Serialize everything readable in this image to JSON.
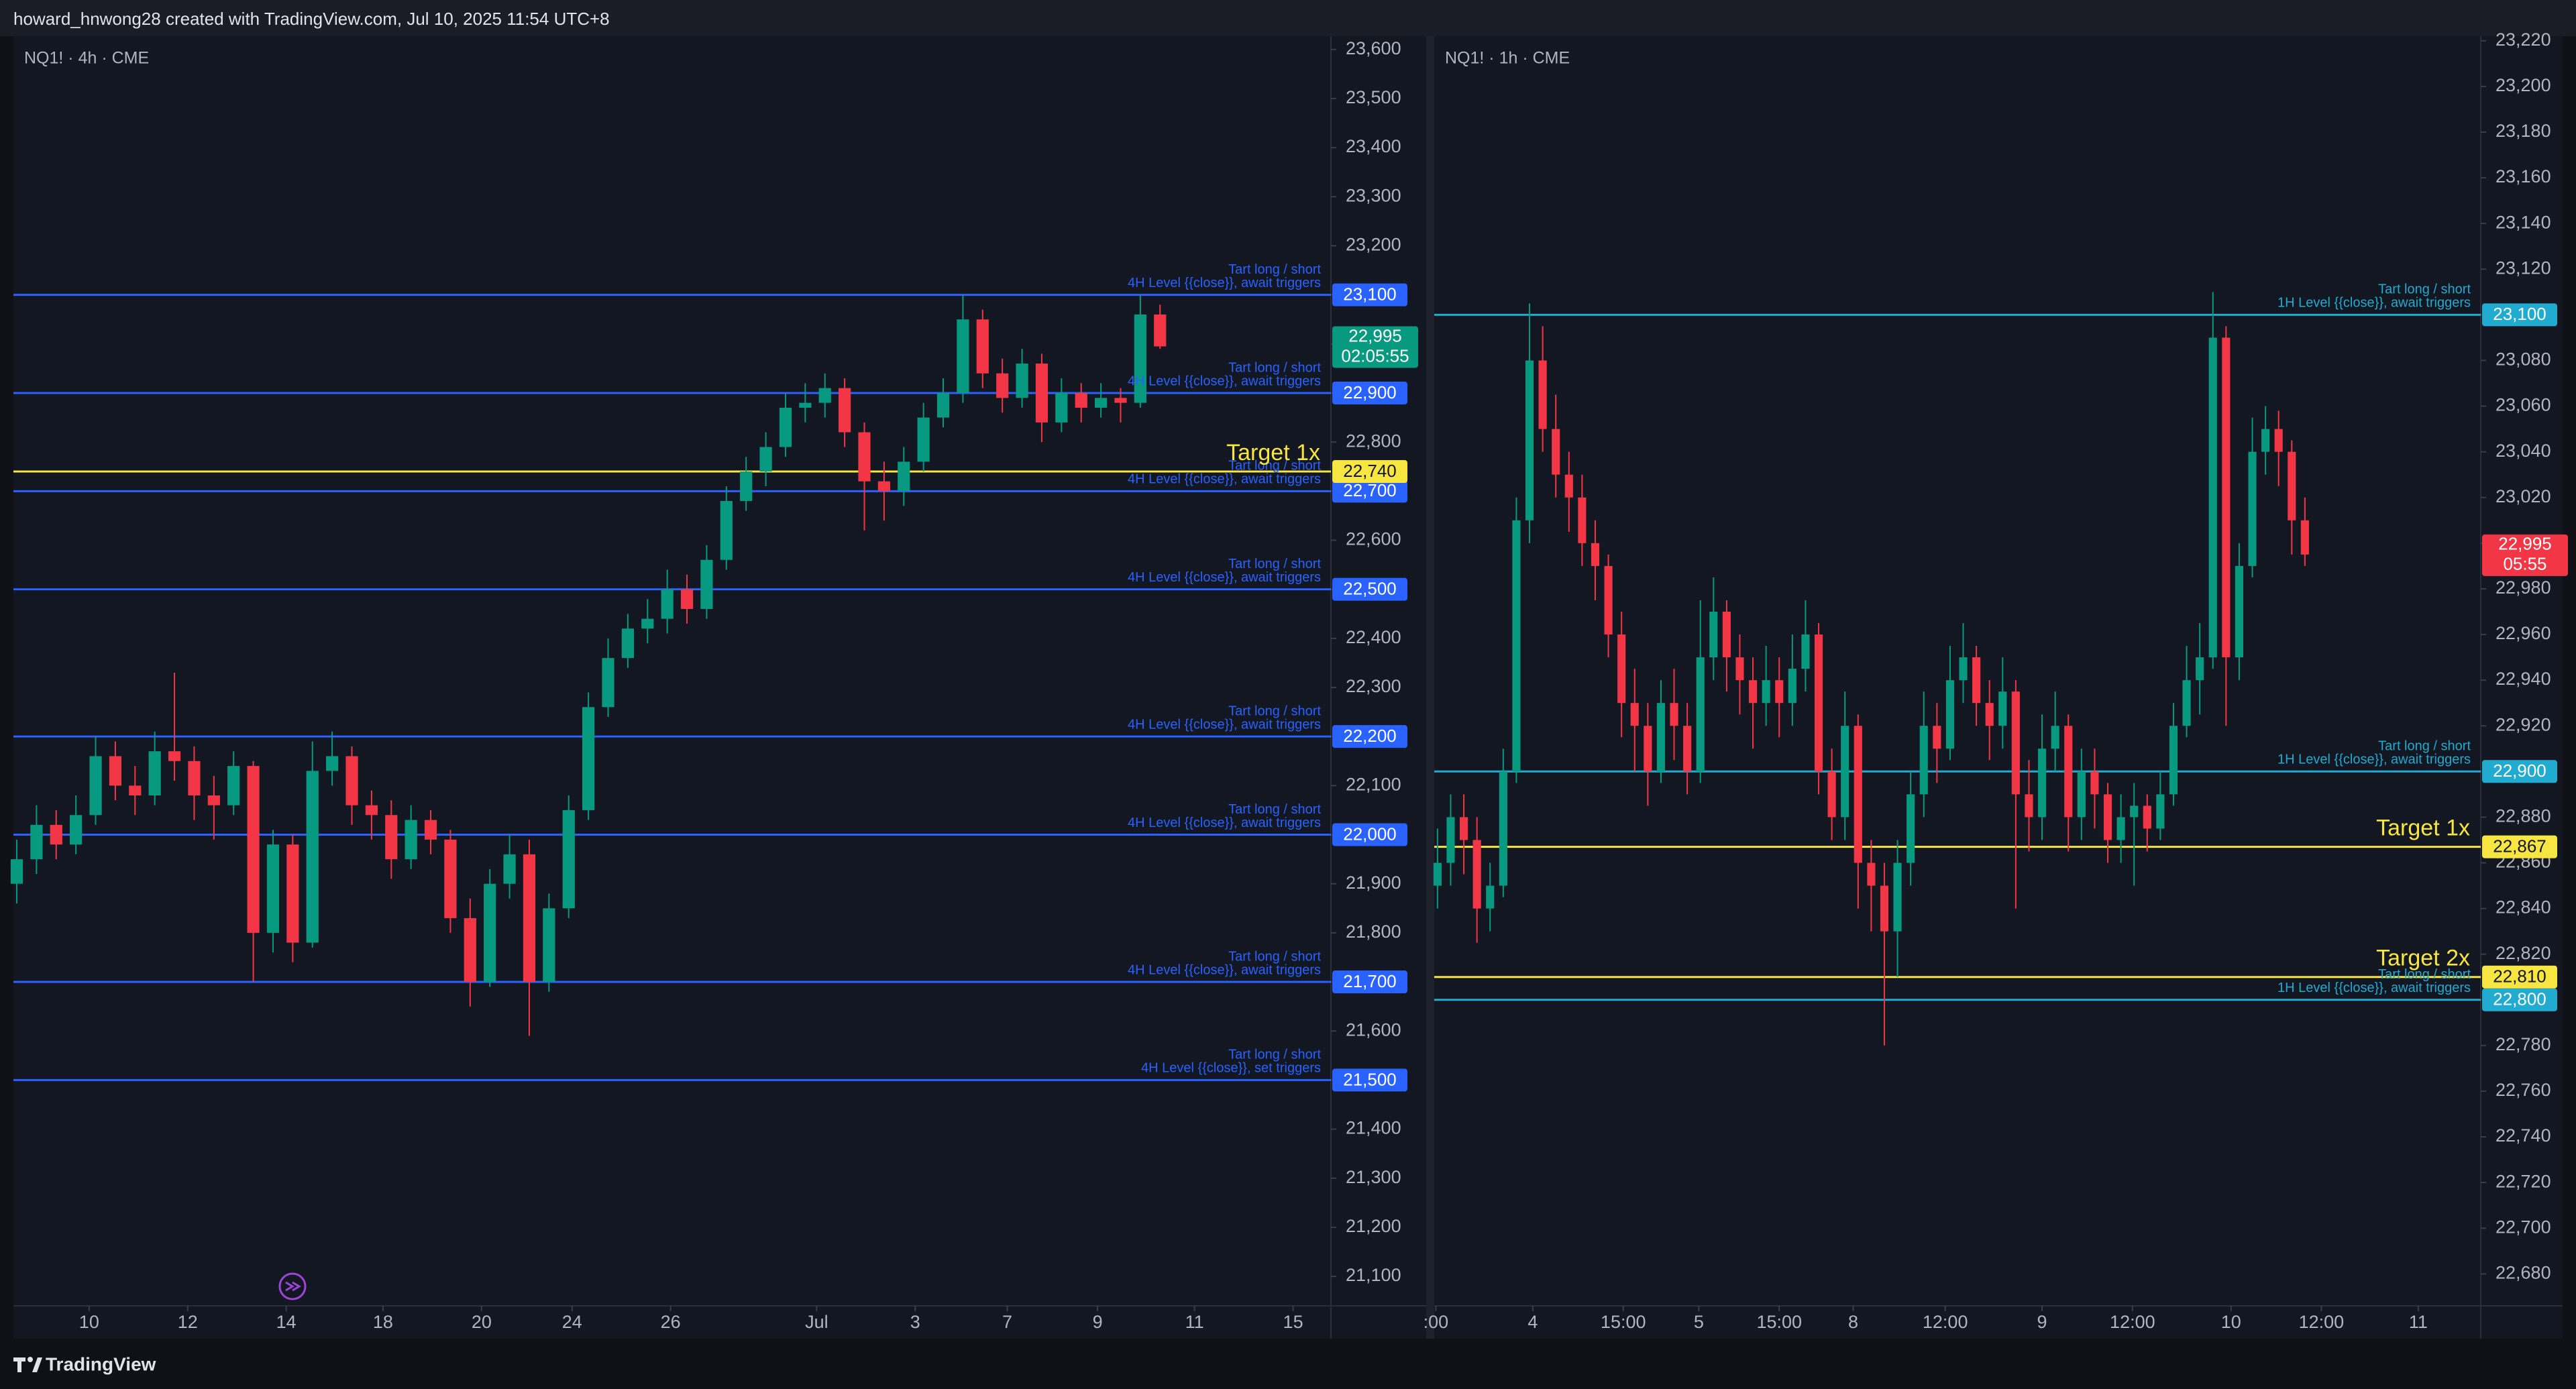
{
  "header": "howard_hnwong28 created with TradingView.com, Jul 10, 2025 11:54 UTC+8",
  "footer": "TradingView",
  "chart_data": [
    {
      "type": "candlestick",
      "title": "NQ1! · 4h · CME",
      "up_color": "#089981",
      "down_color": "#f23645",
      "open": [
        21900,
        21950,
        22020,
        21980,
        22040,
        22160,
        22100,
        22080,
        22170,
        22150,
        22080,
        22060,
        22140,
        21800,
        21980,
        21780,
        22130,
        22160,
        22060,
        22040,
        21950,
        22030,
        21990,
        21830,
        21700,
        21900,
        21960,
        21700,
        21850,
        22050,
        22260,
        22360,
        22420,
        22440,
        22500,
        22460,
        22560,
        22680,
        22740,
        22790,
        22870,
        22880,
        22910,
        22820,
        22720,
        22700,
        22760,
        22850,
        22900,
        23050,
        22940,
        22890,
        22960,
        22840,
        22900,
        22870,
        22890,
        22880,
        23060
      ],
      "high": [
        21990,
        22060,
        22050,
        22080,
        22200,
        22190,
        22140,
        22210,
        22330,
        22180,
        22120,
        22170,
        22150,
        22010,
        22000,
        22190,
        22210,
        22180,
        22090,
        22070,
        22060,
        22050,
        22010,
        21870,
        21930,
        22000,
        21990,
        21880,
        22080,
        22290,
        22400,
        22450,
        22480,
        22540,
        22530,
        22590,
        22710,
        22770,
        22820,
        22900,
        22920,
        22940,
        22930,
        22840,
        22760,
        22790,
        22880,
        22930,
        23100,
        23070,
        22970,
        22990,
        22980,
        22930,
        22920,
        22920,
        22910,
        23100,
        23080
      ],
      "low": [
        21860,
        21920,
        21950,
        21960,
        22020,
        22070,
        22040,
        22060,
        22110,
        22030,
        21990,
        22040,
        21700,
        21760,
        21740,
        21770,
        22100,
        22020,
        21990,
        21910,
        21930,
        21960,
        21800,
        21650,
        21690,
        21870,
        21590,
        21680,
        21830,
        22030,
        22240,
        22340,
        22390,
        22410,
        22430,
        22440,
        22540,
        22660,
        22710,
        22770,
        22840,
        22850,
        22790,
        22620,
        22640,
        22670,
        22740,
        22830,
        22880,
        22910,
        22860,
        22870,
        22800,
        22820,
        22840,
        22850,
        22840,
        22870,
        22990
      ],
      "close": [
        21950,
        22020,
        21980,
        22040,
        22160,
        22100,
        22080,
        22170,
        22150,
        22080,
        22060,
        22140,
        21800,
        21980,
        21780,
        22130,
        22160,
        22060,
        22040,
        21950,
        22030,
        21990,
        21830,
        21700,
        21900,
        21960,
        21700,
        21850,
        22050,
        22260,
        22360,
        22420,
        22440,
        22500,
        22460,
        22560,
        22680,
        22740,
        22790,
        22870,
        22880,
        22910,
        22820,
        22720,
        22700,
        22760,
        22850,
        22900,
        23050,
        22940,
        22890,
        22960,
        22840,
        22900,
        22870,
        22890,
        22880,
        23060,
        22995
      ],
      "xlim": [
        -0.17,
        66.67
      ],
      "xticks": [
        {
          "value": 3.67,
          "label": "10"
        },
        {
          "value": 8.67,
          "label": "12"
        },
        {
          "value": 13.67,
          "label": "14"
        },
        {
          "value": 18.58,
          "label": "18"
        },
        {
          "value": 23.58,
          "label": "20"
        },
        {
          "value": 28.17,
          "label": "24"
        },
        {
          "value": 33.17,
          "label": "26"
        },
        {
          "value": 40.58,
          "label": "Jul"
        },
        {
          "value": 45.58,
          "label": "3"
        },
        {
          "value": 50.25,
          "label": "7"
        },
        {
          "value": 54.83,
          "label": "9"
        },
        {
          "value": 59.75,
          "label": "11"
        },
        {
          "value": 64.75,
          "label": "15"
        }
      ],
      "ylim": [
        21040,
        23627
      ],
      "yticks": [
        {
          "value": 21100,
          "label": "21,100"
        },
        {
          "value": 21200,
          "label": "21,200"
        },
        {
          "value": 21300,
          "label": "21,300"
        },
        {
          "value": 21400,
          "label": "21,400"
        },
        {
          "value": 21500,
          "label": "21,500"
        },
        {
          "value": 21600,
          "label": "21,600"
        },
        {
          "value": 21700,
          "label": "21,700"
        },
        {
          "value": 21800,
          "label": "21,800"
        },
        {
          "value": 21900,
          "label": "21,900"
        },
        {
          "value": 22000,
          "label": "22,000"
        },
        {
          "value": 22100,
          "label": "22,100"
        },
        {
          "value": 22200,
          "label": "22,200"
        },
        {
          "value": 22300,
          "label": "22,300"
        },
        {
          "value": 22400,
          "label": "22,400"
        },
        {
          "value": 22500,
          "label": "22,500"
        },
        {
          "value": 22600,
          "label": "22,600"
        },
        {
          "value": 22700,
          "label": "22,700"
        },
        {
          "value": 22800,
          "label": "22,800"
        },
        {
          "value": 22900,
          "label": "22,900"
        },
        {
          "value": 23000,
          "label": "23,000"
        },
        {
          "value": 23100,
          "label": "23,100"
        },
        {
          "value": 23200,
          "label": "23,200"
        },
        {
          "value": 23300,
          "label": "23,300"
        },
        {
          "value": 23400,
          "label": "23,400"
        },
        {
          "value": 23500,
          "label": "23,500"
        },
        {
          "value": 23600,
          "label": "23,600"
        }
      ],
      "levels": [
        {
          "price": 23100,
          "price_label": "23,100",
          "color": "#2962ff",
          "note": [
            "Tart long / short",
            "4H Level {{close}}, await triggers"
          ]
        },
        {
          "price": 22900,
          "price_label": "22,900",
          "color": "#2962ff",
          "note": [
            "Tart long / short",
            "4H Level {{close}}, await triggers"
          ]
        },
        {
          "price": 22700,
          "price_label": "22,700",
          "color": "#2962ff",
          "note": [
            "Tart long / short",
            "4H Level {{close}}, await triggers"
          ]
        },
        {
          "price": 22500,
          "price_label": "22,500",
          "color": "#2962ff",
          "note": [
            "Tart long / short",
            "4H Level {{close}}, await triggers"
          ]
        },
        {
          "price": 22200,
          "price_label": "22,200",
          "color": "#2962ff",
          "note": [
            "Tart long / short",
            "4H Level {{close}}, await triggers"
          ]
        },
        {
          "price": 22000,
          "price_label": "22,000",
          "color": "#2962ff",
          "note": [
            "Tart long / short",
            "4H Level {{close}}, await triggers"
          ]
        },
        {
          "price": 21700,
          "price_label": "21,700",
          "color": "#2962ff",
          "note": [
            "Tart long / short",
            "4H Level {{close}}, await triggers"
          ]
        },
        {
          "price": 21500,
          "price_label": "21,500",
          "color": "#2962ff",
          "note": [
            "Tart long / short",
            "4H Level {{close}}, set triggers"
          ]
        },
        {
          "price": 22740,
          "price_label": "22,740",
          "color": "#f7e541",
          "target": "Target 1x"
        }
      ],
      "last_price": {
        "value": 22995,
        "label": "22,995",
        "countdown": "02:05:55",
        "color": "#089981"
      }
    },
    {
      "type": "candlestick",
      "title": "NQ1! · 1h · CME",
      "up_color": "#089981",
      "down_color": "#f23645",
      "open": [
        22850,
        22860,
        22880,
        22870,
        22840,
        22850,
        22900,
        23010,
        23080,
        23050,
        23030,
        23020,
        23000,
        22990,
        22960,
        22930,
        22920,
        22900,
        22930,
        22920,
        22900,
        22950,
        22970,
        22950,
        22940,
        22930,
        22940,
        22930,
        22945,
        22960,
        22900,
        22880,
        22920,
        22860,
        22850,
        22830,
        22860,
        22890,
        22920,
        22910,
        22940,
        22950,
        22930,
        22920,
        22935,
        22890,
        22880,
        22910,
        22920,
        22880,
        22900,
        22890,
        22870,
        22880,
        22885,
        22875,
        22890,
        22920,
        22940,
        22950,
        23090,
        22950,
        22990,
        23040,
        23050,
        23040,
        23010
      ],
      "high": [
        22875,
        22890,
        22890,
        22880,
        22860,
        22910,
        23020,
        23105,
        23095,
        23065,
        23040,
        23030,
        23010,
        22995,
        22970,
        22945,
        22930,
        22940,
        22945,
        22930,
        22975,
        22985,
        22975,
        22960,
        22950,
        22955,
        22950,
        22960,
        22975,
        22965,
        22910,
        22935,
        22925,
        22870,
        22860,
        22870,
        22900,
        22935,
        22930,
        22955,
        22965,
        22955,
        22940,
        22950,
        22940,
        22905,
        22925,
        22935,
        22925,
        22910,
        22910,
        22895,
        22890,
        22895,
        22890,
        22900,
        22930,
        22955,
        22965,
        23110,
        23095,
        23000,
        23055,
        23060,
        23058,
        23045,
        23020
      ],
      "low": [
        22840,
        22850,
        22855,
        22825,
        22830,
        22845,
        22895,
        23000,
        23040,
        23020,
        23005,
        22990,
        22975,
        22950,
        22915,
        22900,
        22885,
        22895,
        22905,
        22890,
        22895,
        22940,
        22935,
        22925,
        22910,
        22920,
        22915,
        22920,
        22935,
        22890,
        22870,
        22870,
        22840,
        22830,
        22780,
        22810,
        22850,
        22880,
        22895,
        22905,
        22930,
        22920,
        22905,
        22910,
        22840,
        22865,
        22870,
        22900,
        22865,
        22870,
        22875,
        22860,
        22860,
        22850,
        22865,
        22870,
        22885,
        22915,
        22925,
        22945,
        22920,
        22940,
        22985,
        23030,
        23025,
        22995,
        22990
      ],
      "close": [
        22860,
        22880,
        22870,
        22840,
        22850,
        22900,
        23010,
        23080,
        23050,
        23030,
        23020,
        23000,
        22990,
        22960,
        22930,
        22920,
        22900,
        22930,
        22920,
        22900,
        22950,
        22970,
        22950,
        22940,
        22930,
        22940,
        22930,
        22945,
        22960,
        22900,
        22880,
        22920,
        22860,
        22850,
        22830,
        22860,
        22890,
        22920,
        22910,
        22940,
        22950,
        22930,
        22920,
        22935,
        22890,
        22880,
        22910,
        22920,
        22880,
        22900,
        22890,
        22870,
        22880,
        22885,
        22875,
        22890,
        22920,
        22940,
        22950,
        23090,
        22950,
        22990,
        23040,
        23050,
        23040,
        23010,
        22995
      ],
      "xlim": [
        -0.25,
        79.38
      ],
      "xticks": [
        {
          "value": -0.13,
          "label": ":00"
        },
        {
          "value": 7.25,
          "label": "4"
        },
        {
          "value": 14.13,
          "label": "15:00"
        },
        {
          "value": 19.88,
          "label": "5"
        },
        {
          "value": 26,
          "label": "15:00"
        },
        {
          "value": 31.63,
          "label": "8"
        },
        {
          "value": 38.63,
          "label": "12:00"
        },
        {
          "value": 46,
          "label": "9"
        },
        {
          "value": 52.88,
          "label": "12:00"
        },
        {
          "value": 60.38,
          "label": "10"
        },
        {
          "value": 67.25,
          "label": "12:00"
        },
        {
          "value": 74.63,
          "label": "11"
        }
      ],
      "ylim": [
        22666,
        23222
      ],
      "yticks": [
        {
          "value": 22680,
          "label": "22,680"
        },
        {
          "value": 22700,
          "label": "22,700"
        },
        {
          "value": 22720,
          "label": "22,720"
        },
        {
          "value": 22740,
          "label": "22,740"
        },
        {
          "value": 22760,
          "label": "22,760"
        },
        {
          "value": 22780,
          "label": "22,780"
        },
        {
          "value": 22800,
          "label": "22,800"
        },
        {
          "value": 22820,
          "label": "22,820"
        },
        {
          "value": 22840,
          "label": "22,840"
        },
        {
          "value": 22860,
          "label": "22,860"
        },
        {
          "value": 22880,
          "label": "22,880"
        },
        {
          "value": 22900,
          "label": "22,900"
        },
        {
          "value": 22920,
          "label": "22,920"
        },
        {
          "value": 22940,
          "label": "22,940"
        },
        {
          "value": 22960,
          "label": "22,960"
        },
        {
          "value": 22980,
          "label": "22,980"
        },
        {
          "value": 23000,
          "label": "23,000"
        },
        {
          "value": 23020,
          "label": "23,020"
        },
        {
          "value": 23040,
          "label": "23,040"
        },
        {
          "value": 23060,
          "label": "23,060"
        },
        {
          "value": 23080,
          "label": "23,080"
        },
        {
          "value": 23100,
          "label": "23,100"
        },
        {
          "value": 23120,
          "label": "23,120"
        },
        {
          "value": 23140,
          "label": "23,140"
        },
        {
          "value": 23160,
          "label": "23,160"
        },
        {
          "value": 23180,
          "label": "23,180"
        },
        {
          "value": 23200,
          "label": "23,200"
        },
        {
          "value": 23220,
          "label": "23,220"
        }
      ],
      "levels": [
        {
          "price": 23100,
          "price_label": "23,100",
          "color": "#22abd0",
          "note": [
            "Tart long / short",
            "1H Level {{close}}, await triggers"
          ]
        },
        {
          "price": 22900,
          "price_label": "22,900",
          "color": "#22abd0",
          "note": [
            "Tart long / short",
            "1H Level {{close}}, await triggers"
          ]
        },
        {
          "price": 22800,
          "price_label": "22,800",
          "color": "#22abd0",
          "note": [
            "Tart long / short",
            "1H Level {{close}}, await triggers"
          ]
        },
        {
          "price": 22867,
          "price_label": "22,867",
          "color": "#f7e541",
          "target": "Target 1x"
        },
        {
          "price": 22810,
          "price_label": "22,810",
          "color": "#f7e541",
          "target": "Target 2x"
        }
      ],
      "last_price": {
        "value": 22995,
        "label": "22,995",
        "countdown": "05:55",
        "color": "#f23645"
      }
    }
  ]
}
